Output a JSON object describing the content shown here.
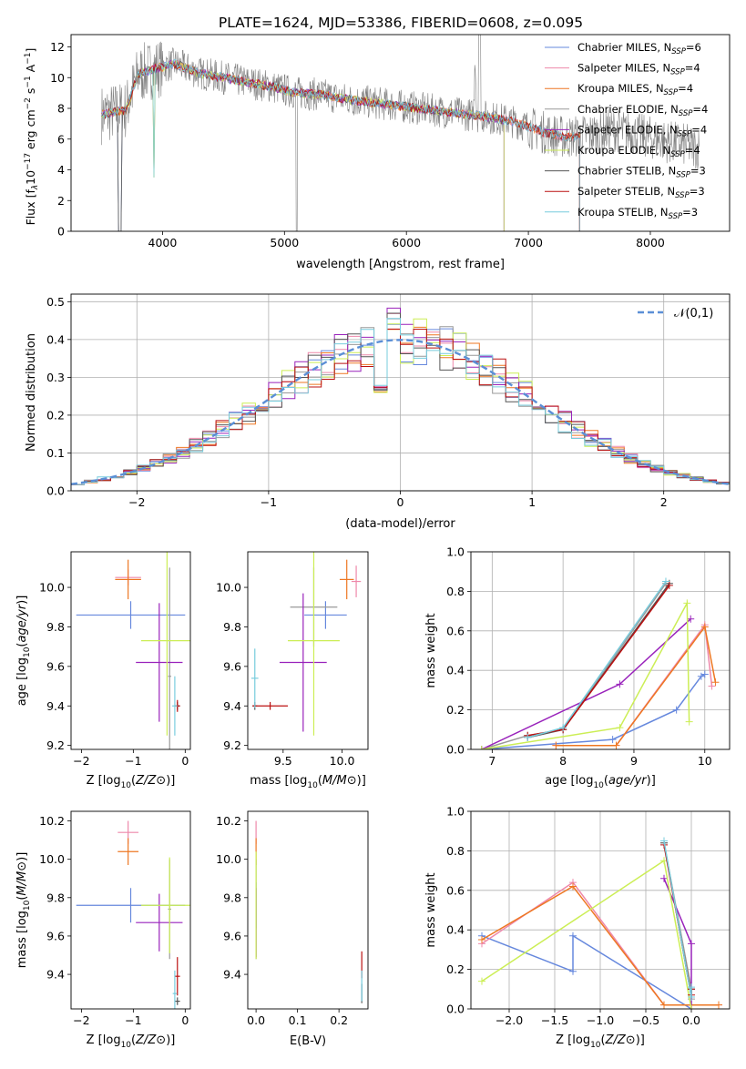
{
  "title": "PLATE=1624, MJD=53386, FIBERID=0608, z=0.095",
  "colors": {
    "Chabrier MILES": "#6688dd",
    "Salpeter MILES": "#ee88aa",
    "Kroupa MILES": "#ee7722",
    "Chabrier ELODIE": "#999999",
    "Salpeter ELODIE": "#9922bb",
    "Kroupa ELODIE": "#ccee55",
    "Chabrier STELIB": "#555555",
    "Salpeter STELIB": "#bb1111",
    "Kroupa STELIB": "#77ccdd",
    "data": "#808080",
    "gauss": "#5b8fd6",
    "grid": "#b0b0b0"
  },
  "chart_data": [
    {
      "id": "spectrum",
      "type": "line",
      "xlabel": "wavelength [Angstrom, rest frame]",
      "ylabel": "Flux [f_λ 10^-17 erg cm^-2 s^-1 A^-1]",
      "ylabel_parts": {
        "a": "Flux [f",
        "b": "λ",
        "c": "10",
        "d": "−17",
        "e": " erg cm",
        "f": "−2",
        "g": " s",
        "h": "−1",
        "i": " A",
        "j": "−1",
        "k": "]"
      },
      "xlim": [
        3250,
        8650
      ],
      "ylim": [
        0,
        12.8
      ],
      "xticks": [
        4000,
        5000,
        6000,
        7000,
        8000
      ],
      "yticks": [
        0,
        2,
        4,
        6,
        8,
        10,
        12
      ],
      "grid": false,
      "legend_position": "upper right",
      "legend": [
        {
          "model": "Chabrier MILES",
          "label": "Chabrier MILES, N",
          "sub": "SSP",
          "value": "=6"
        },
        {
          "model": "Salpeter MILES",
          "label": "Salpeter MILES, N",
          "sub": "SSP",
          "value": "=4"
        },
        {
          "model": "Kroupa MILES",
          "label": "Kroupa MILES, N",
          "sub": "SSP",
          "value": "=4"
        },
        {
          "model": "Chabrier ELODIE",
          "label": "Chabrier ELODIE, N",
          "sub": "SSP",
          "value": "=4"
        },
        {
          "model": "Salpeter ELODIE",
          "label": "Salpeter ELODIE, N",
          "sub": "SSP",
          "value": "=4"
        },
        {
          "model": "Kroupa ELODIE",
          "label": "Kroupa ELODIE, N",
          "sub": "SSP",
          "value": "=4"
        },
        {
          "model": "Chabrier STELIB",
          "label": "Chabrier STELIB, N",
          "sub": "SSP",
          "value": "=3"
        },
        {
          "model": "Salpeter STELIB",
          "label": "Salpeter STELIB, N",
          "sub": "SSP",
          "value": "=3"
        },
        {
          "model": "Kroupa STELIB",
          "label": "Kroupa STELIB, N",
          "sub": "SSP",
          "value": "=3"
        }
      ],
      "continuum": [
        [
          3500,
          7.6
        ],
        [
          3700,
          7.9
        ],
        [
          3800,
          10.2
        ],
        [
          3950,
          10.6
        ],
        [
          4100,
          10.9
        ],
        [
          4300,
          10.3
        ],
        [
          4500,
          10.0
        ],
        [
          4700,
          9.7
        ],
        [
          4900,
          9.4
        ],
        [
          5100,
          9.0
        ],
        [
          5300,
          8.9
        ],
        [
          5500,
          8.6
        ],
        [
          5700,
          8.4
        ],
        [
          5900,
          8.2
        ],
        [
          6100,
          8.0
        ],
        [
          6300,
          7.8
        ],
        [
          6500,
          7.6
        ],
        [
          6700,
          7.4
        ],
        [
          6900,
          7.1
        ],
        [
          7100,
          6.5
        ],
        [
          7300,
          6.1
        ],
        [
          7500,
          6.3
        ],
        [
          7700,
          6.6
        ],
        [
          7900,
          6.3
        ],
        [
          8100,
          5.9
        ],
        [
          8300,
          5.6
        ],
        [
          8400,
          5.4
        ]
      ],
      "model_range": [
        3500,
        7420
      ],
      "elodie_range": [
        3500,
        6800
      ]
    },
    {
      "id": "residuals",
      "type": "histogram",
      "xlabel": "(data-model)/error",
      "ylabel": "Normed distribution",
      "xlim": [
        -2.5,
        2.5
      ],
      "ylim": [
        0,
        0.52
      ],
      "xticks": [
        -2,
        -1,
        0,
        1,
        2
      ],
      "xticklabels": [
        "−2",
        "−1",
        "0",
        "1",
        "2"
      ],
      "yticks": [
        0.0,
        0.1,
        0.2,
        0.3,
        0.4,
        0.5
      ],
      "yticklabels": [
        "0.0",
        "0.1",
        "0.2",
        "0.3",
        "0.4",
        "0.5"
      ],
      "grid": true,
      "bins": 50,
      "gauss_label": "𝒩(0,1)",
      "legend_position": "upper right"
    },
    {
      "id": "age-vs-Z",
      "type": "scatter",
      "xlabel": "Z [log10(Z/Z⊙)]",
      "ylabel": "age  [log10(age/yr)]",
      "xlim": [
        -2.2,
        0.1
      ],
      "ylim": [
        9.18,
        10.18
      ],
      "xticks": [
        -2,
        -1,
        0
      ],
      "xticklabels": [
        "−2",
        "−1",
        "0"
      ],
      "yticks": [
        9.2,
        9.4,
        9.6,
        9.8,
        10.0
      ],
      "yticklabels": [
        "9.2",
        "9.4",
        "9.6",
        "9.8",
        "10.0"
      ],
      "points": [
        {
          "model": "Chabrier MILES",
          "x": -1.05,
          "xerr": 1.05,
          "y": 9.86,
          "yerr": 0.07
        },
        {
          "model": "Salpeter MILES",
          "x": -1.1,
          "xerr": 0.25,
          "y": 10.05,
          "yerr": 0.04
        },
        {
          "model": "Kroupa MILES",
          "x": -1.1,
          "xerr": 0.25,
          "y": 10.04,
          "yerr": 0.1
        },
        {
          "model": "Chabrier ELODIE",
          "x": -0.3,
          "xerr": 0.03,
          "y": 9.55,
          "yerr": 0.55
        },
        {
          "model": "Salpeter ELODIE",
          "x": -0.5,
          "xerr": 0.45,
          "y": 9.62,
          "yerr": 0.3
        },
        {
          "model": "Kroupa ELODIE",
          "x": -0.35,
          "xerr": 0.5,
          "y": 9.73,
          "yerr": 0.48
        },
        {
          "model": "Chabrier STELIB",
          "x": -0.15,
          "xerr": 0.05,
          "y": 9.4,
          "yerr": 0.02
        },
        {
          "model": "Salpeter STELIB",
          "x": -0.15,
          "xerr": 0.05,
          "y": 9.4,
          "yerr": 0.03
        },
        {
          "model": "Kroupa STELIB",
          "x": -0.2,
          "xerr": 0.05,
          "y": 9.4,
          "yerr": 0.15
        }
      ]
    },
    {
      "id": "age-vs-mass",
      "type": "scatter",
      "xlabel": "mass [log10(M/M⊙)]",
      "ylabel": "",
      "xlim": [
        9.2,
        10.22
      ],
      "ylim": [
        9.18,
        10.18
      ],
      "xticks": [
        9.5,
        10.0
      ],
      "xticklabels": [
        "9.5",
        "10.0"
      ],
      "yticks": [
        9.2,
        9.4,
        9.6,
        9.8,
        10.0
      ],
      "yticklabels": [
        "9.2",
        "9.4",
        "9.6",
        "9.8",
        "10.0"
      ],
      "points": [
        {
          "model": "Chabrier MILES",
          "x": 9.86,
          "xerr": 0.18,
          "y": 9.86,
          "yerr": 0.07
        },
        {
          "model": "Salpeter MILES",
          "x": 10.12,
          "xerr": 0.04,
          "y": 10.03,
          "yerr": 0.08
        },
        {
          "model": "Kroupa MILES",
          "x": 10.04,
          "xerr": 0.06,
          "y": 10.04,
          "yerr": 0.1
        },
        {
          "model": "Chabrier ELODIE",
          "x": 9.76,
          "xerr": 0.2,
          "y": 9.9,
          "yerr": 0.2
        },
        {
          "model": "Salpeter ELODIE",
          "x": 9.67,
          "xerr": 0.2,
          "y": 9.62,
          "yerr": 0.35
        },
        {
          "model": "Kroupa ELODIE",
          "x": 9.76,
          "xerr": 0.22,
          "y": 9.73,
          "yerr": 0.48
        },
        {
          "model": "Chabrier STELIB",
          "x": 9.26,
          "xerr": 0.02,
          "y": 9.4,
          "yerr": 0.02
        },
        {
          "model": "Salpeter STELIB",
          "x": 9.39,
          "xerr": 0.15,
          "y": 9.4,
          "yerr": 0.02
        },
        {
          "model": "Kroupa STELIB",
          "x": 9.26,
          "xerr": 0.03,
          "y": 9.54,
          "yerr": 0.15
        }
      ]
    },
    {
      "id": "weight-vs-age",
      "type": "line",
      "xlabel": "age  [log10(age/yr)]",
      "ylabel": "mass weight",
      "xlim": [
        6.7,
        10.35
      ],
      "ylim": [
        0.0,
        1.0
      ],
      "xticks": [
        7,
        8,
        9,
        10
      ],
      "xticklabels": [
        "7",
        "8",
        "9",
        "10"
      ],
      "yticks": [
        0.0,
        0.2,
        0.4,
        0.6,
        0.8,
        1.0
      ],
      "yticklabels": [
        "0.0",
        "0.2",
        "0.4",
        "0.6",
        "0.8",
        "1.0"
      ],
      "grid": true,
      "series": [
        {
          "model": "Chabrier MILES",
          "x": [
            6.85,
            8.7,
            9.6,
            9.95,
            10.0
          ],
          "y": [
            0.0,
            0.05,
            0.2,
            0.37,
            0.38
          ]
        },
        {
          "model": "Salpeter MILES",
          "x": [
            7.9,
            8.75,
            10.0,
            10.1
          ],
          "y": [
            0.02,
            0.02,
            0.63,
            0.32
          ]
        },
        {
          "model": "Kroupa MILES",
          "x": [
            7.9,
            8.75,
            10.0,
            10.15
          ],
          "y": [
            0.02,
            0.02,
            0.62,
            0.34
          ]
        },
        {
          "model": "Chabrier ELODIE",
          "x": [
            6.85,
            7.5,
            8.0,
            9.45
          ],
          "y": [
            0.0,
            0.07,
            0.1,
            0.84
          ]
        },
        {
          "model": "Salpeter ELODIE",
          "x": [
            6.85,
            8.8,
            9.8
          ],
          "y": [
            0.0,
            0.33,
            0.66
          ]
        },
        {
          "model": "Kroupa ELODIE",
          "x": [
            6.85,
            8.8,
            9.75,
            9.78
          ],
          "y": [
            0.0,
            0.11,
            0.74,
            0.14
          ]
        },
        {
          "model": "Chabrier STELIB",
          "x": [
            7.5,
            8.0,
            9.5
          ],
          "y": [
            0.06,
            0.1,
            0.84
          ]
        },
        {
          "model": "Salpeter STELIB",
          "x": [
            7.5,
            8.0,
            9.5
          ],
          "y": [
            0.07,
            0.1,
            0.83
          ]
        },
        {
          "model": "Kroupa STELIB",
          "x": [
            7.5,
            8.0,
            9.45
          ],
          "y": [
            0.06,
            0.11,
            0.85
          ]
        }
      ]
    },
    {
      "id": "mass-vs-Z",
      "type": "scatter",
      "xlabel": "Z [log10(Z/Z⊙)]",
      "ylabel": "mass [log10(M/M⊙)]",
      "xlim": [
        -2.2,
        0.1
      ],
      "ylim": [
        9.22,
        10.25
      ],
      "xticks": [
        -2,
        -1,
        0
      ],
      "xticklabels": [
        "−2",
        "−1",
        "0"
      ],
      "yticks": [
        9.4,
        9.6,
        9.8,
        10.0,
        10.2
      ],
      "yticklabels": [
        "9.4",
        "9.6",
        "9.8",
        "10.0",
        "10.2"
      ],
      "points": [
        {
          "model": "Chabrier MILES",
          "x": -1.05,
          "xerr": 1.05,
          "y": 9.76,
          "yerr": 0.09
        },
        {
          "model": "Salpeter MILES",
          "x": -1.1,
          "xerr": 0.2,
          "y": 10.14,
          "yerr": 0.06
        },
        {
          "model": "Kroupa MILES",
          "x": -1.1,
          "xerr": 0.2,
          "y": 10.04,
          "yerr": 0.07
        },
        {
          "model": "Chabrier ELODIE",
          "x": -0.3,
          "xerr": 0.03,
          "y": 9.74,
          "yerr": 0.26
        },
        {
          "model": "Salpeter ELODIE",
          "x": -0.5,
          "xerr": 0.45,
          "y": 9.67,
          "yerr": 0.15
        },
        {
          "model": "Kroupa ELODIE",
          "x": -0.3,
          "xerr": 0.55,
          "y": 9.76,
          "yerr": 0.25
        },
        {
          "model": "Chabrier STELIB",
          "x": -0.15,
          "xerr": 0.05,
          "y": 9.26,
          "yerr": 0.02
        },
        {
          "model": "Salpeter STELIB",
          "x": -0.15,
          "xerr": 0.05,
          "y": 9.39,
          "yerr": 0.1
        },
        {
          "model": "Kroupa STELIB",
          "x": -0.2,
          "xerr": 0.04,
          "y": 9.3,
          "yerr": 0.12
        }
      ]
    },
    {
      "id": "mass-vs-ebv",
      "type": "scatter",
      "xlabel": "E(B-V)",
      "ylabel": "",
      "xlim": [
        -0.02,
        0.27
      ],
      "ylim": [
        9.22,
        10.25
      ],
      "xticks": [
        0.0,
        0.1,
        0.2
      ],
      "xticklabels": [
        "0.0",
        "0.1",
        "0.2"
      ],
      "yticks": [
        9.4,
        9.6,
        9.8,
        10.0,
        10.2
      ],
      "yticklabels": [
        "9.4",
        "9.6",
        "9.8",
        "10.0",
        "10.2"
      ],
      "points": [
        {
          "model": "Chabrier MILES",
          "x": 0.0,
          "xerr": 0.0,
          "y": 9.76,
          "yerr": 0.12
        },
        {
          "model": "Salpeter MILES",
          "x": 0.0,
          "xerr": 0.0,
          "y": 10.14,
          "yerr": 0.06
        },
        {
          "model": "Kroupa MILES",
          "x": 0.0,
          "xerr": 0.0,
          "y": 10.04,
          "yerr": 0.07
        },
        {
          "model": "Chabrier ELODIE",
          "x": 0.0,
          "xerr": 0.0,
          "y": 9.74,
          "yerr": 0.26
        },
        {
          "model": "Salpeter ELODIE",
          "x": 0.0,
          "xerr": 0.0,
          "y": 9.67,
          "yerr": 0.18
        },
        {
          "model": "Kroupa ELODIE",
          "x": 0.0,
          "xerr": 0.0,
          "y": 9.76,
          "yerr": 0.28
        },
        {
          "model": "Chabrier STELIB",
          "x": 0.255,
          "xerr": 0.0,
          "y": 9.3,
          "yerr": 0.05
        },
        {
          "model": "Salpeter STELIB",
          "x": 0.255,
          "xerr": 0.0,
          "y": 9.45,
          "yerr": 0.07
        },
        {
          "model": "Kroupa STELIB",
          "x": 0.255,
          "xerr": 0.0,
          "y": 9.34,
          "yerr": 0.08
        }
      ]
    },
    {
      "id": "weight-vs-Z",
      "type": "line",
      "xlabel": "Z [log10(Z/Z⊙)]",
      "ylabel": "mass weight",
      "xlim": [
        -2.42,
        0.42
      ],
      "ylim": [
        0.0,
        1.0
      ],
      "xticks": [
        -2.0,
        -1.5,
        -1.0,
        -0.5,
        0.0
      ],
      "xticklabels": [
        "−2.0",
        "−1.5",
        "−1.0",
        "−0.5",
        "0.0"
      ],
      "yticks": [
        0.0,
        0.2,
        0.4,
        0.6,
        0.8,
        1.0
      ],
      "yticklabels": [
        "0.0",
        "0.2",
        "0.4",
        "0.6",
        "0.8",
        "1.0"
      ],
      "grid": true,
      "series": [
        {
          "model": "Chabrier MILES",
          "x": [
            -2.3,
            -1.3,
            -1.3,
            0.0
          ],
          "y": [
            0.37,
            0.19,
            0.37,
            0.0
          ]
        },
        {
          "model": "Salpeter MILES",
          "x": [
            -2.3,
            -1.3,
            -0.3,
            0.3
          ],
          "y": [
            0.33,
            0.64,
            0.02,
            0.02
          ]
        },
        {
          "model": "Kroupa MILES",
          "x": [
            -2.3,
            -1.3,
            -0.3,
            0.3
          ],
          "y": [
            0.35,
            0.62,
            0.02,
            0.02
          ]
        },
        {
          "model": "Chabrier ELODIE",
          "x": [
            -0.3,
            0.0,
            0.0
          ],
          "y": [
            0.84,
            0.1,
            0.05
          ]
        },
        {
          "model": "Salpeter ELODIE",
          "x": [
            -0.3,
            0.0,
            0.0
          ],
          "y": [
            0.66,
            0.33,
            0.0
          ]
        },
        {
          "model": "Kroupa ELODIE",
          "x": [
            -2.3,
            -0.3,
            0.0
          ],
          "y": [
            0.14,
            0.75,
            0.0
          ]
        },
        {
          "model": "Chabrier STELIB",
          "x": [
            -0.3,
            0.0,
            0.0
          ],
          "y": [
            0.84,
            0.06,
            0.1
          ]
        },
        {
          "model": "Salpeter STELIB",
          "x": [
            -0.3,
            0.0,
            0.0
          ],
          "y": [
            0.83,
            0.07,
            0.1
          ]
        },
        {
          "model": "Kroupa STELIB",
          "x": [
            -0.3,
            0.0,
            0.0
          ],
          "y": [
            0.85,
            0.06,
            0.11
          ]
        }
      ]
    }
  ]
}
